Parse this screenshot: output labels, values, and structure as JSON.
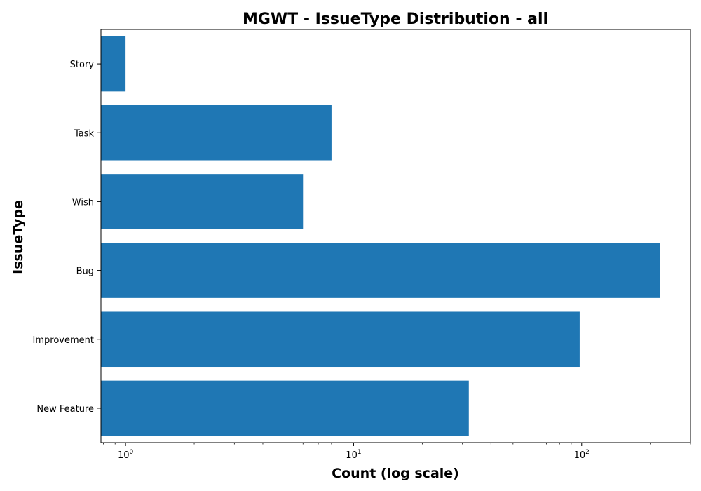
{
  "chart_data": {
    "type": "bar",
    "orientation": "horizontal",
    "title": "MGWT - IssueType Distribution - all",
    "xlabel": "Count (log scale)",
    "ylabel": "IssueType",
    "xscale": "log",
    "xlim": [
      0.78,
      300
    ],
    "categories": [
      "New Feature",
      "Improvement",
      "Bug",
      "Wish",
      "Task",
      "Story"
    ],
    "values": [
      32,
      98,
      220,
      6,
      8,
      1
    ],
    "bar_color": "#1f77b4",
    "grid": false,
    "legend": "none",
    "x_major_ticks": [
      {
        "base": "10",
        "exp": "0",
        "value": 1
      },
      {
        "base": "10",
        "exp": "1",
        "value": 10
      },
      {
        "base": "10",
        "exp": "2",
        "value": 100
      }
    ]
  }
}
